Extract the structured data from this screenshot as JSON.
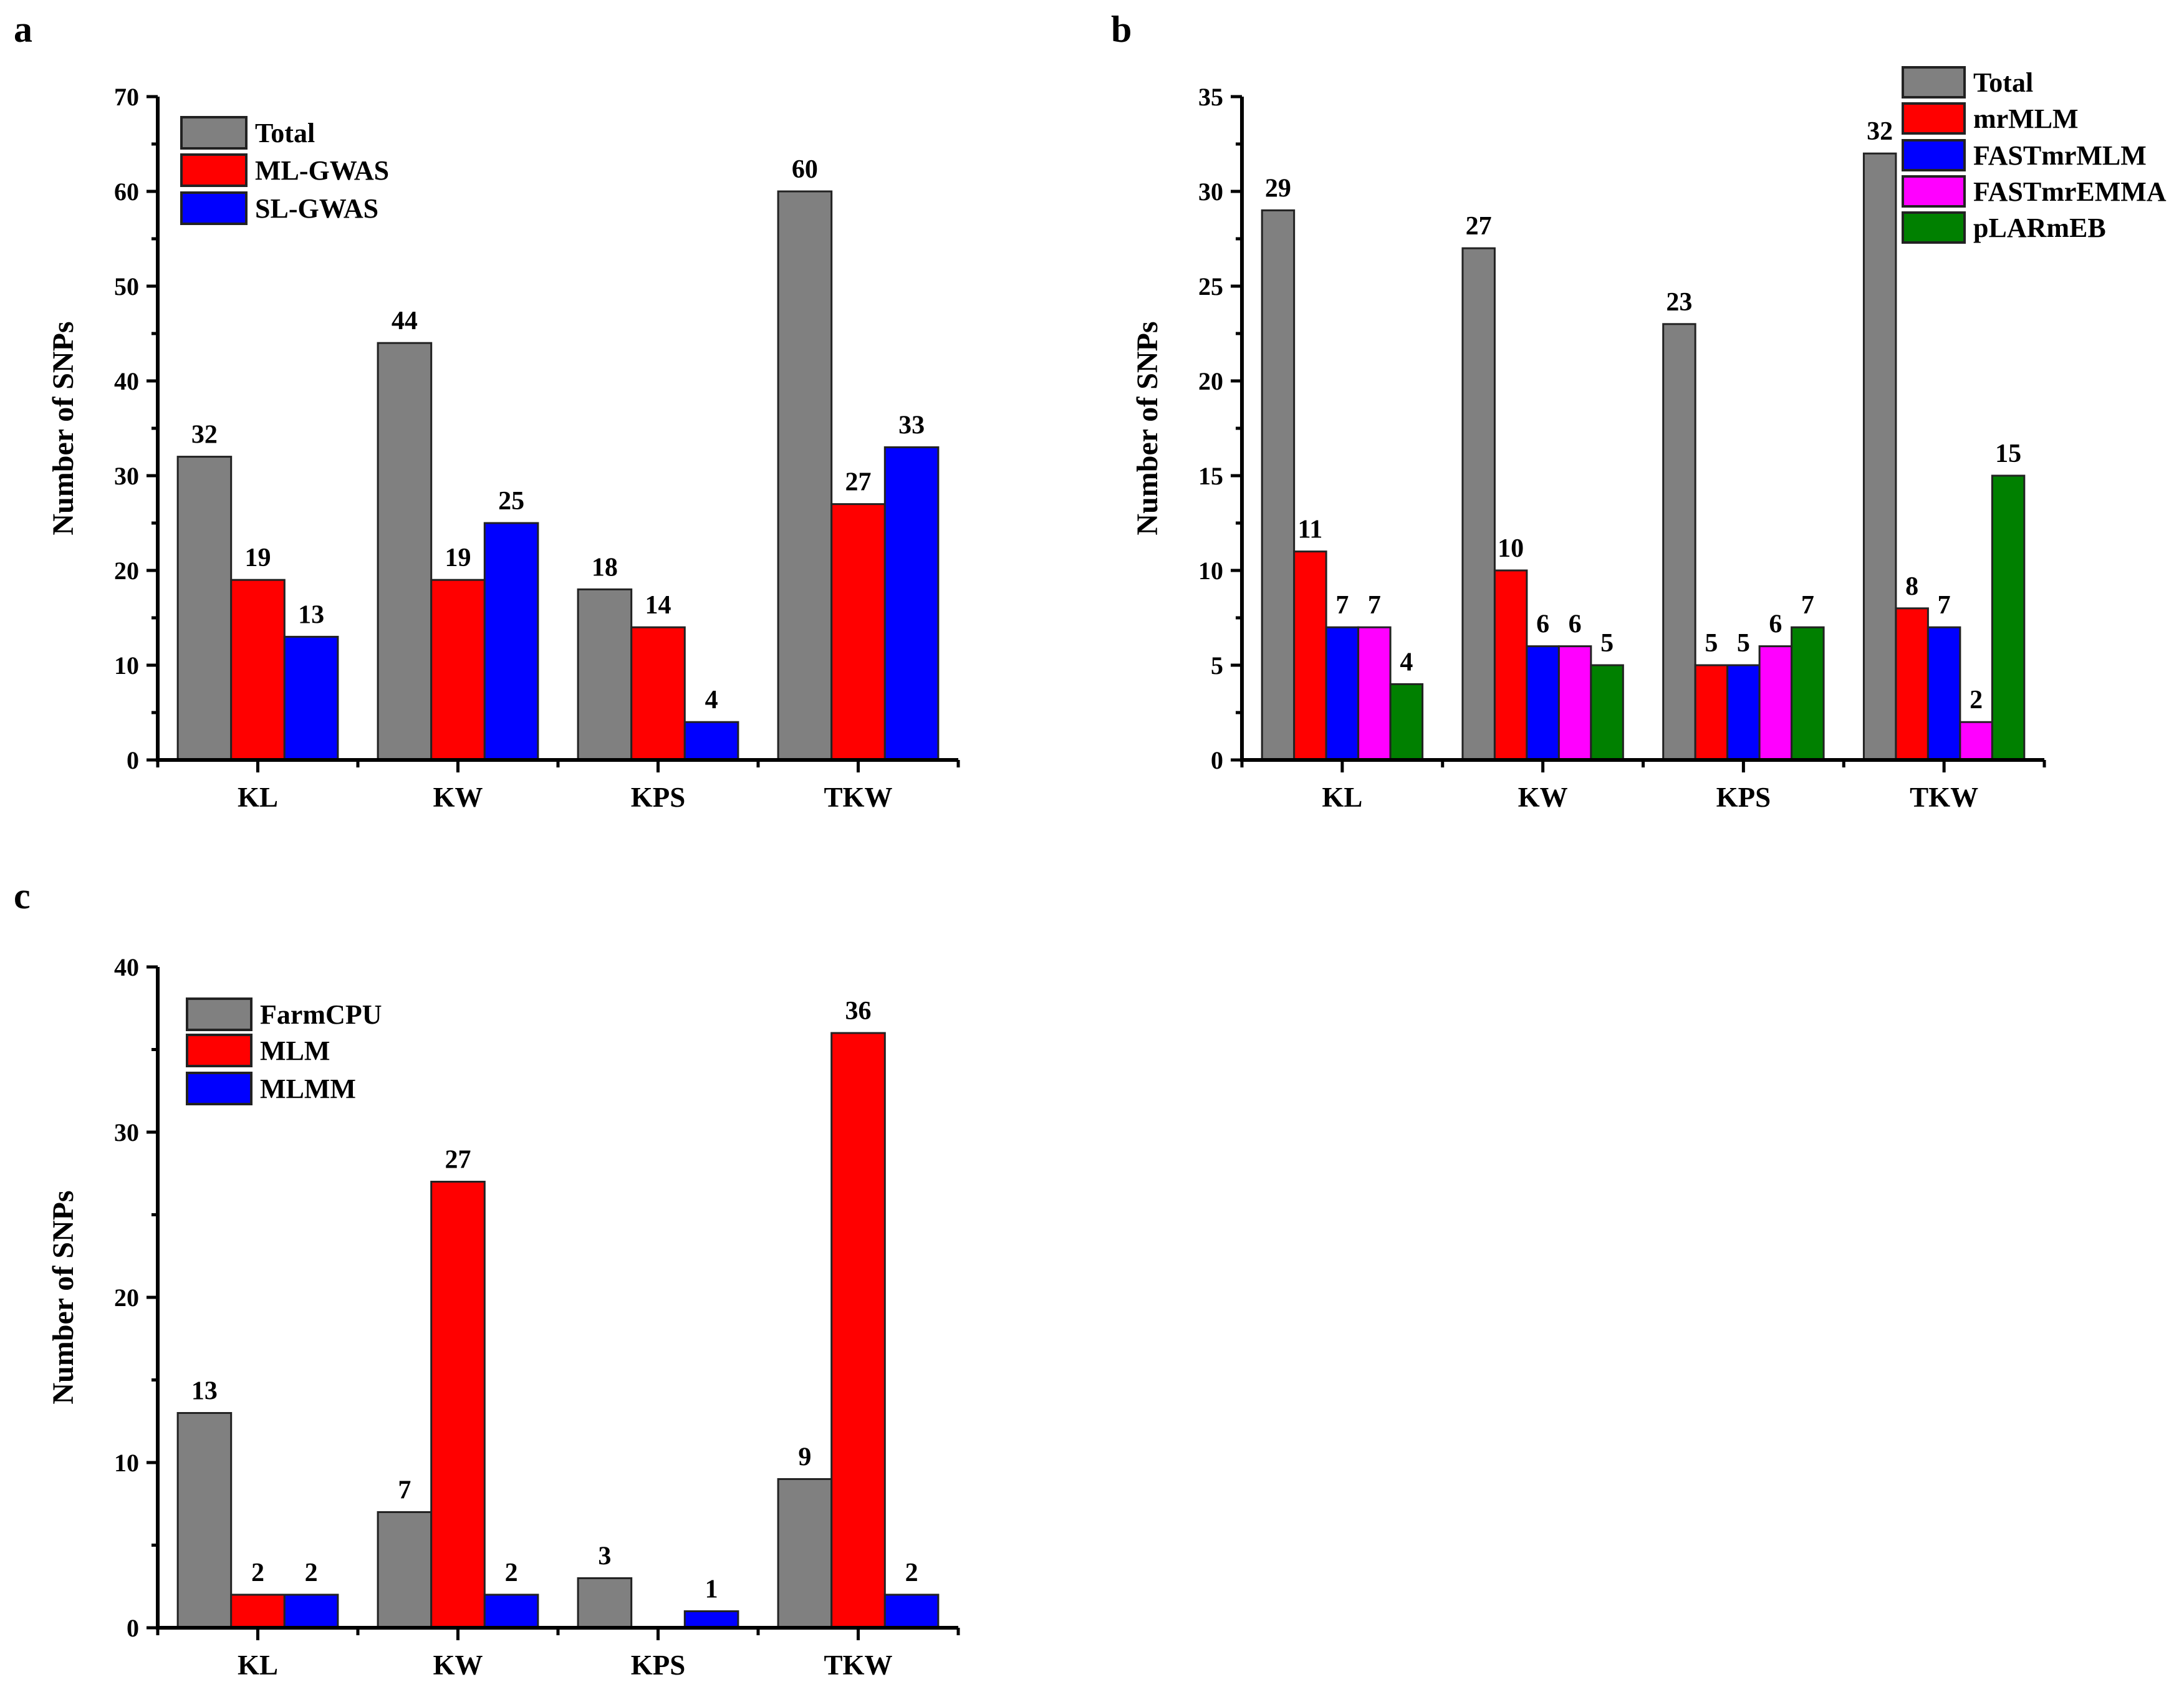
{
  "chart_data": [
    {
      "type": "bar",
      "panel_label": "a",
      "ylabel": "Number of SNPs",
      "xlabel": "",
      "ylim": [
        0,
        70
      ],
      "ytick_step": 10,
      "categories": [
        "KL",
        "KW",
        "KPS",
        "TKW"
      ],
      "legend_position": "top-left",
      "series": [
        {
          "name": "Total",
          "color": "#808080",
          "values": [
            32,
            44,
            18,
            60
          ]
        },
        {
          "name": "ML-GWAS",
          "color": "#ff0000",
          "values": [
            19,
            19,
            14,
            27
          ]
        },
        {
          "name": "SL-GWAS",
          "color": "#0000ff",
          "values": [
            13,
            25,
            4,
            33
          ]
        }
      ]
    },
    {
      "type": "bar",
      "panel_label": "b",
      "ylabel": "Number of SNPs",
      "xlabel": "",
      "ylim": [
        0,
        35
      ],
      "ytick_step": 5,
      "categories": [
        "KL",
        "KW",
        "KPS",
        "TKW"
      ],
      "legend_position": "top-right",
      "series": [
        {
          "name": "Total",
          "color": "#808080",
          "values": [
            29,
            27,
            23,
            32
          ]
        },
        {
          "name": "mrMLM",
          "color": "#ff0000",
          "values": [
            11,
            10,
            5,
            8
          ]
        },
        {
          "name": "FASTmrMLM",
          "color": "#0000ff",
          "values": [
            7,
            6,
            5,
            7
          ]
        },
        {
          "name": "FASTmrEMMA",
          "color": "#ff00ff",
          "values": [
            7,
            6,
            6,
            2
          ]
        },
        {
          "name": "pLARmEB",
          "color": "#008000",
          "values": [
            4,
            5,
            7,
            15
          ]
        }
      ]
    },
    {
      "type": "bar",
      "panel_label": "c",
      "ylabel": "Number of SNPs",
      "xlabel": "",
      "ylim": [
        0,
        40
      ],
      "ytick_step": 10,
      "categories": [
        "KL",
        "KW",
        "KPS",
        "TKW"
      ],
      "legend_position": "top-left",
      "series": [
        {
          "name": "FarmCPU",
          "color": "#808080",
          "values": [
            13,
            7,
            3,
            9
          ]
        },
        {
          "name": "MLM",
          "color": "#ff0000",
          "values": [
            2,
            27,
            null,
            36
          ]
        },
        {
          "name": "MLMM",
          "color": "#0000ff",
          "values": [
            2,
            2,
            1,
            2
          ]
        }
      ]
    }
  ]
}
